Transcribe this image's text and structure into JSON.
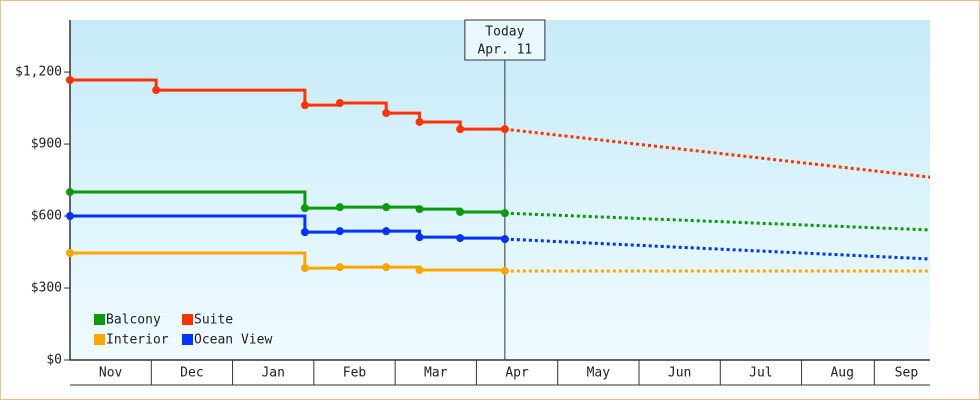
{
  "chart_data": {
    "type": "step-line",
    "annotation": {
      "x": 5.35,
      "lines": [
        "Today",
        "Apr. 11"
      ]
    },
    "xlim": [
      0,
      10.58
    ],
    "xticks": [
      {
        "value": 0.5,
        "label": "Nov"
      },
      {
        "value": 1.5,
        "label": "Dec"
      },
      {
        "value": 2.5,
        "label": "Jan"
      },
      {
        "value": 3.5,
        "label": "Feb"
      },
      {
        "value": 4.5,
        "label": "Mar"
      },
      {
        "value": 5.5,
        "label": "Apr"
      },
      {
        "value": 6.5,
        "label": "May"
      },
      {
        "value": 7.5,
        "label": "Jun"
      },
      {
        "value": 8.5,
        "label": "Jul"
      },
      {
        "value": 9.5,
        "label": "Aug"
      },
      {
        "value": 10.29,
        "label": "Sep"
      }
    ],
    "ylim": [
      0,
      1417
    ],
    "yticks": [
      {
        "value": 0,
        "label": "$0"
      },
      {
        "value": 300,
        "label": "$300"
      },
      {
        "value": 600,
        "label": "$600"
      },
      {
        "value": 900,
        "label": "$900"
      },
      {
        "value": 1200,
        "label": "$1,200"
      }
    ],
    "series": [
      {
        "name": "Balcony",
        "color": "#0a9a0a",
        "x": [
          0,
          2.89,
          3.32,
          3.89,
          4.3,
          4.8,
          5.35
        ],
        "values": [
          700,
          633,
          637,
          637,
          629,
          617,
          612
        ],
        "forecast": {
          "x": [
            5.35,
            10.58
          ],
          "values": [
            612,
            542
          ]
        }
      },
      {
        "name": "Suite",
        "color": "#ff3300",
        "x": [
          0,
          1.06,
          2.89,
          3.32,
          3.89,
          4.3,
          4.8,
          5.35
        ],
        "values": [
          1167,
          1125,
          1062,
          1071,
          1029,
          992,
          962,
          962
        ],
        "forecast": {
          "x": [
            5.35,
            10.58
          ],
          "values": [
            962,
            762
          ]
        }
      },
      {
        "name": "Interior",
        "color": "#ffa500",
        "x": [
          0,
          2.89,
          3.32,
          3.89,
          4.3,
          5.35
        ],
        "values": [
          446,
          383,
          387,
          387,
          375,
          371
        ],
        "forecast": {
          "x": [
            5.35,
            10.58
          ],
          "values": [
            371,
            371
          ]
        }
      },
      {
        "name": "Ocean View",
        "color": "#0033ff",
        "x": [
          0,
          2.89,
          3.32,
          3.89,
          4.3,
          4.8,
          5.35
        ],
        "values": [
          600,
          533,
          537,
          537,
          512,
          508,
          504
        ],
        "forecast": {
          "x": [
            5.35,
            10.58
          ],
          "values": [
            504,
            421
          ]
        }
      }
    ]
  }
}
